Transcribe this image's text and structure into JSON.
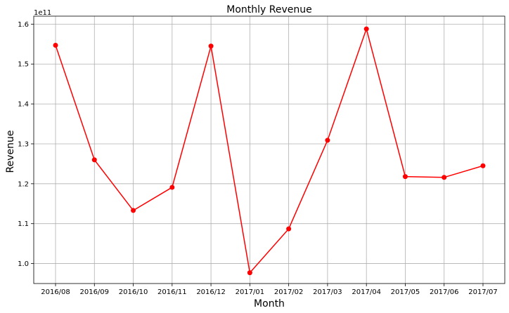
{
  "chart_data": {
    "type": "line",
    "title": "Monthly Revenue",
    "xlabel": "Month",
    "ylabel": "Revenue",
    "y_scale_label": "1e11",
    "categories": [
      "2016/08",
      "2016/09",
      "2016/10",
      "2016/11",
      "2016/12",
      "2017/01",
      "2017/02",
      "2017/03",
      "2017/04",
      "2017/05",
      "2017/06",
      "2017/07"
    ],
    "values": [
      1.547,
      1.26,
      1.133,
      1.191,
      1.545,
      0.977,
      1.087,
      1.309,
      1.588,
      1.218,
      1.216,
      1.245
    ],
    "ylim": [
      0.95,
      1.62
    ],
    "yticks": [
      1.0,
      1.1,
      1.2,
      1.3,
      1.4,
      1.5,
      1.6
    ],
    "ytick_labels": [
      "1.0",
      "1.1",
      "1.2",
      "1.3",
      "1.4",
      "1.5",
      "1.6"
    ],
    "grid": true,
    "line_color": "#ff0000",
    "marker": "circle"
  }
}
